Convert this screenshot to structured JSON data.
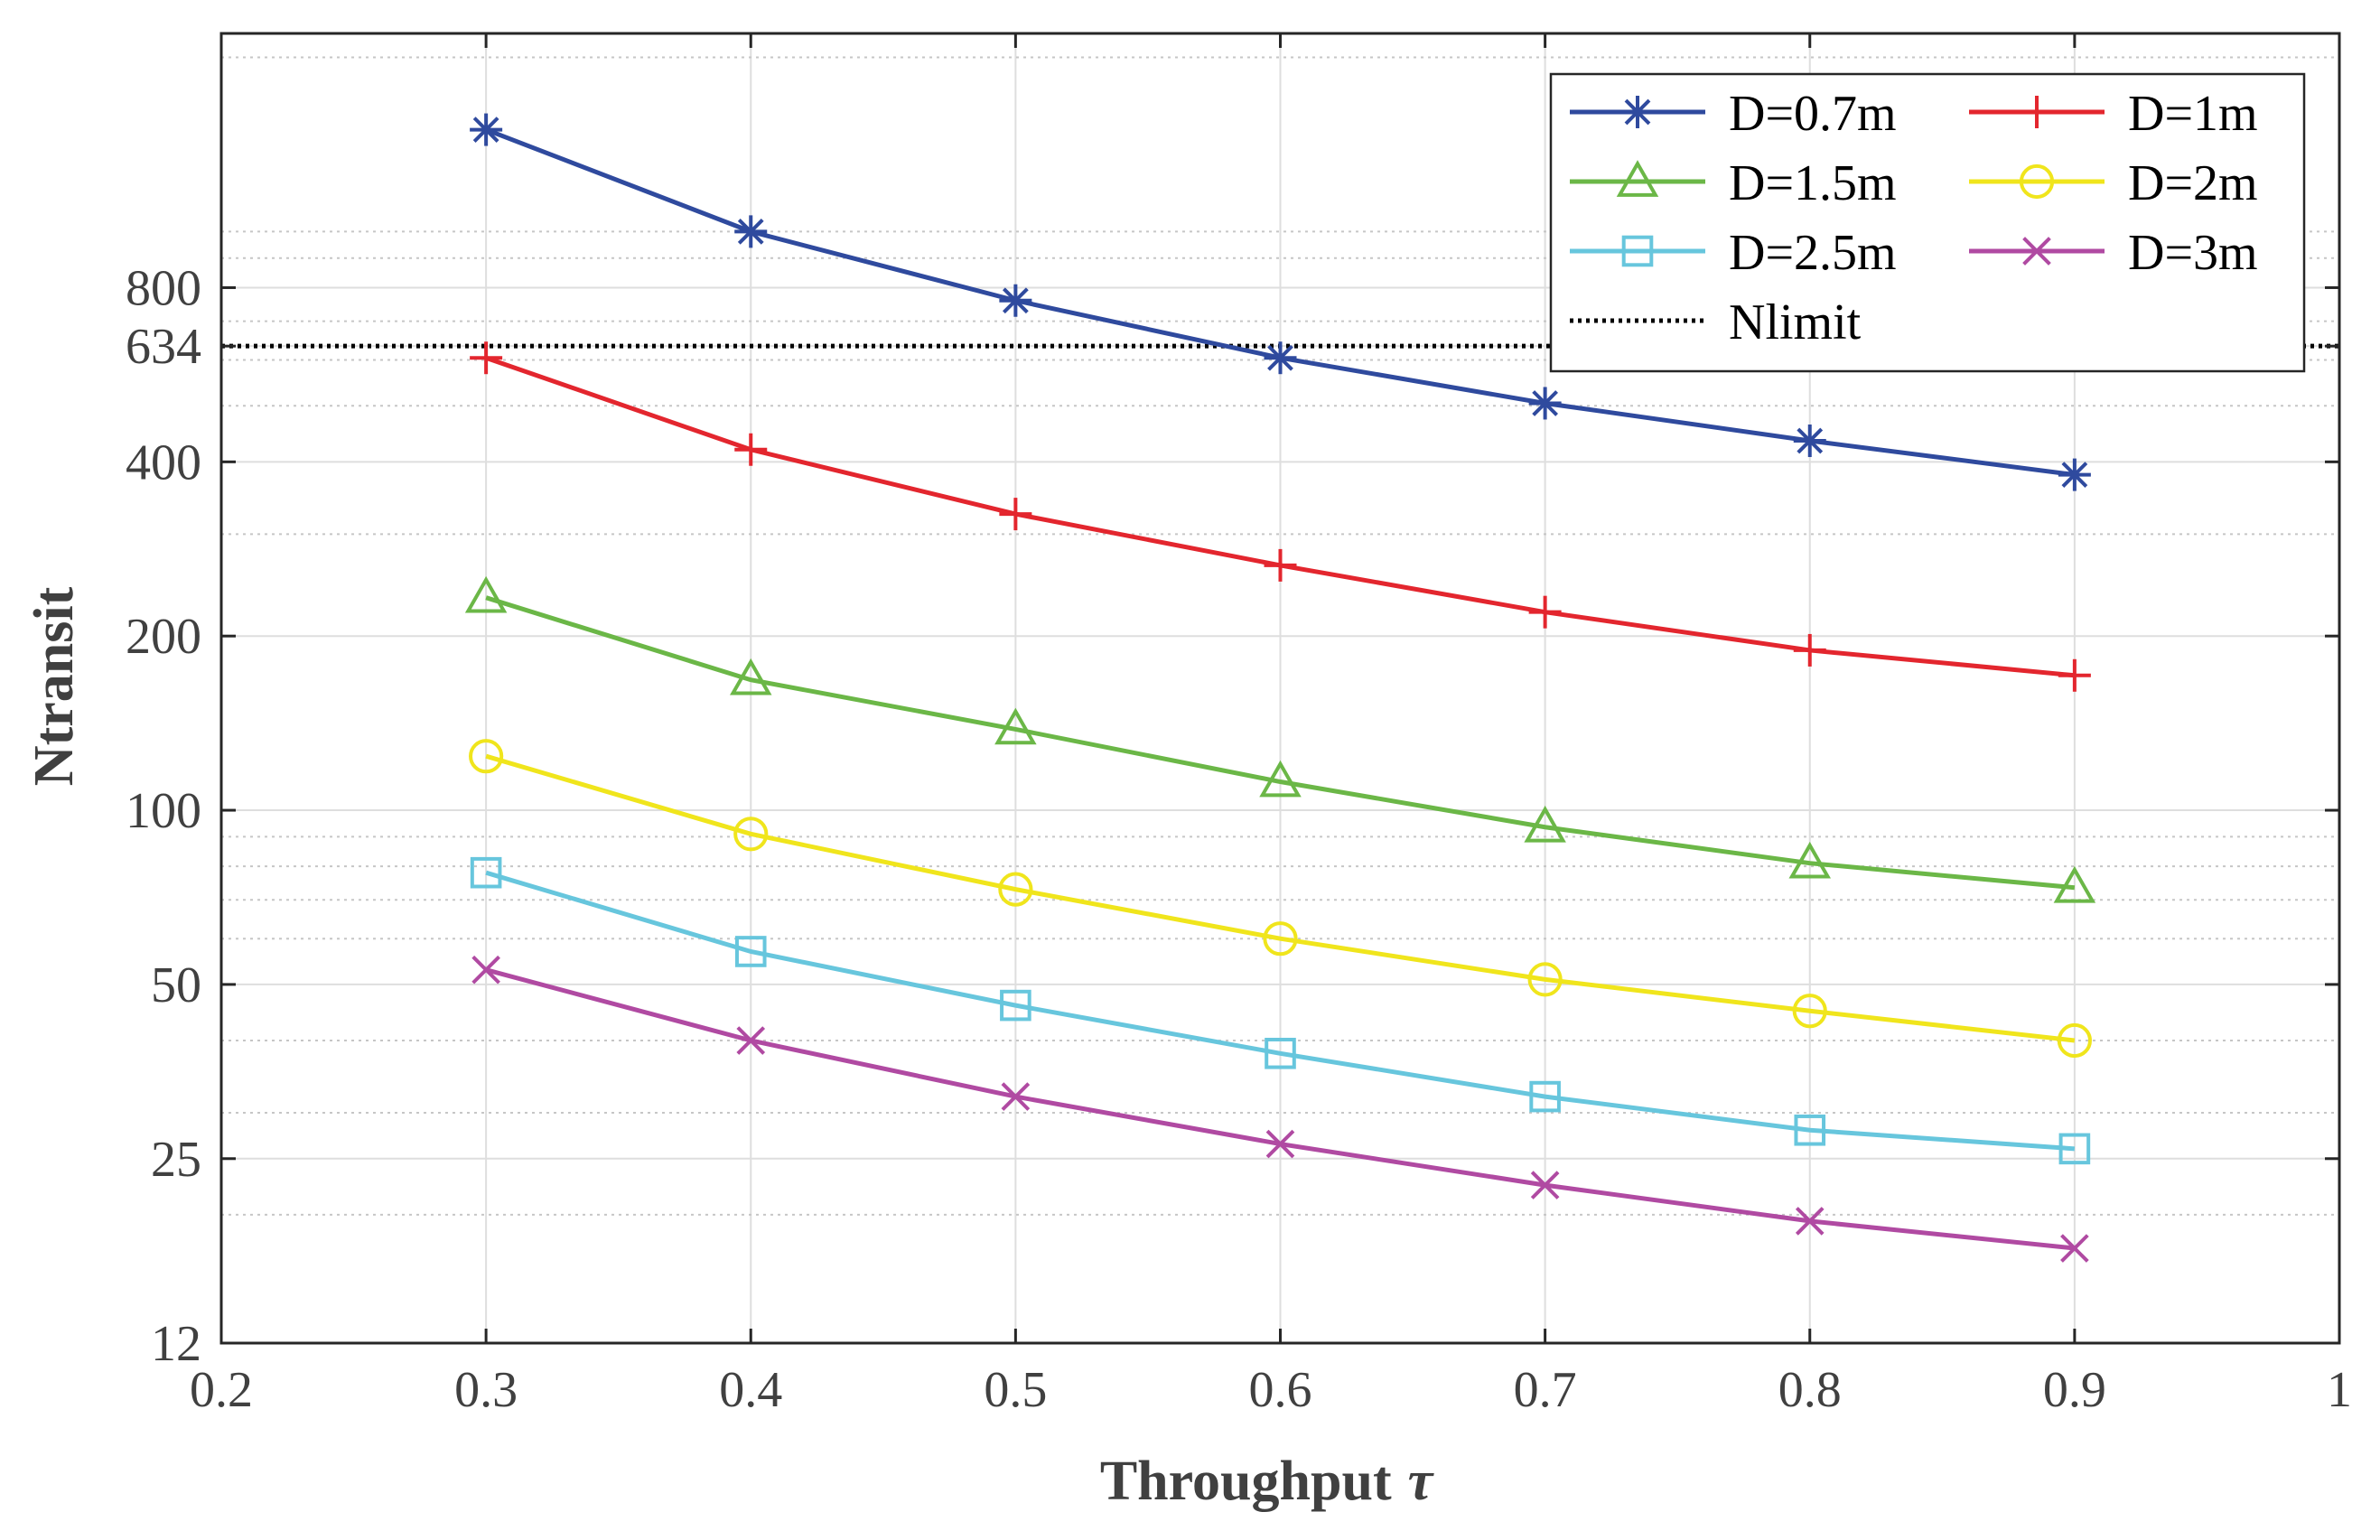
{
  "chart_data": {
    "type": "line",
    "xlabel": "Throughput",
    "xlabel_symbol": "τ",
    "ylabel": "Ntransit",
    "y_scale": "log",
    "xlim": [
      0.2,
      1.0
    ],
    "ylim": [
      12,
      2200
    ],
    "x_ticks": [
      0.2,
      0.3,
      0.4,
      0.5,
      0.6,
      0.7,
      0.8,
      0.9,
      1.0
    ],
    "x_tick_labels": [
      "0.2",
      "0.3",
      "0.4",
      "0.5",
      "0.6",
      "0.7",
      "0.8",
      "0.9",
      "1"
    ],
    "y_ticks": [
      12,
      25,
      50,
      100,
      200,
      400,
      634,
      800
    ],
    "y_tick_labels": [
      "12",
      "25",
      "50",
      "100",
      "200",
      "400",
      "634",
      "800"
    ],
    "x": [
      0.3,
      0.4,
      0.5,
      0.6,
      0.7,
      0.8,
      0.9
    ],
    "series": [
      {
        "name": "D=0.7m",
        "color": "#2f4a9e",
        "marker": "asterisk",
        "values": [
          1500,
          1000,
          760,
          605,
          505,
          435,
          380
        ]
      },
      {
        "name": "D=1m",
        "color": "#e3262e",
        "marker": "plus",
        "values": [
          605,
          420,
          325,
          265,
          220,
          189,
          171
        ]
      },
      {
        "name": "D=1.5m",
        "color": "#6bb747",
        "marker": "triangle",
        "values": [
          233,
          168,
          138,
          112,
          93.5,
          81,
          73.5
        ]
      },
      {
        "name": "D=2m",
        "color": "#f0e51c",
        "marker": "circle",
        "values": [
          124,
          91,
          73,
          60,
          51,
          45,
          40
        ]
      },
      {
        "name": "D=2.5m",
        "color": "#67c6dd",
        "marker": "square",
        "values": [
          78,
          57,
          46,
          38,
          32,
          28,
          26
        ]
      },
      {
        "name": "D=3m",
        "color": "#b04aa2",
        "marker": "x",
        "values": [
          53,
          40,
          32,
          26.5,
          22.5,
          19.5,
          17.5
        ]
      }
    ],
    "reference_line": {
      "name": "Nlimit",
      "value": 634,
      "style": "dotted",
      "color": "#000000"
    },
    "legend": {
      "position": "top-right",
      "columns": 2
    },
    "grid": true
  }
}
